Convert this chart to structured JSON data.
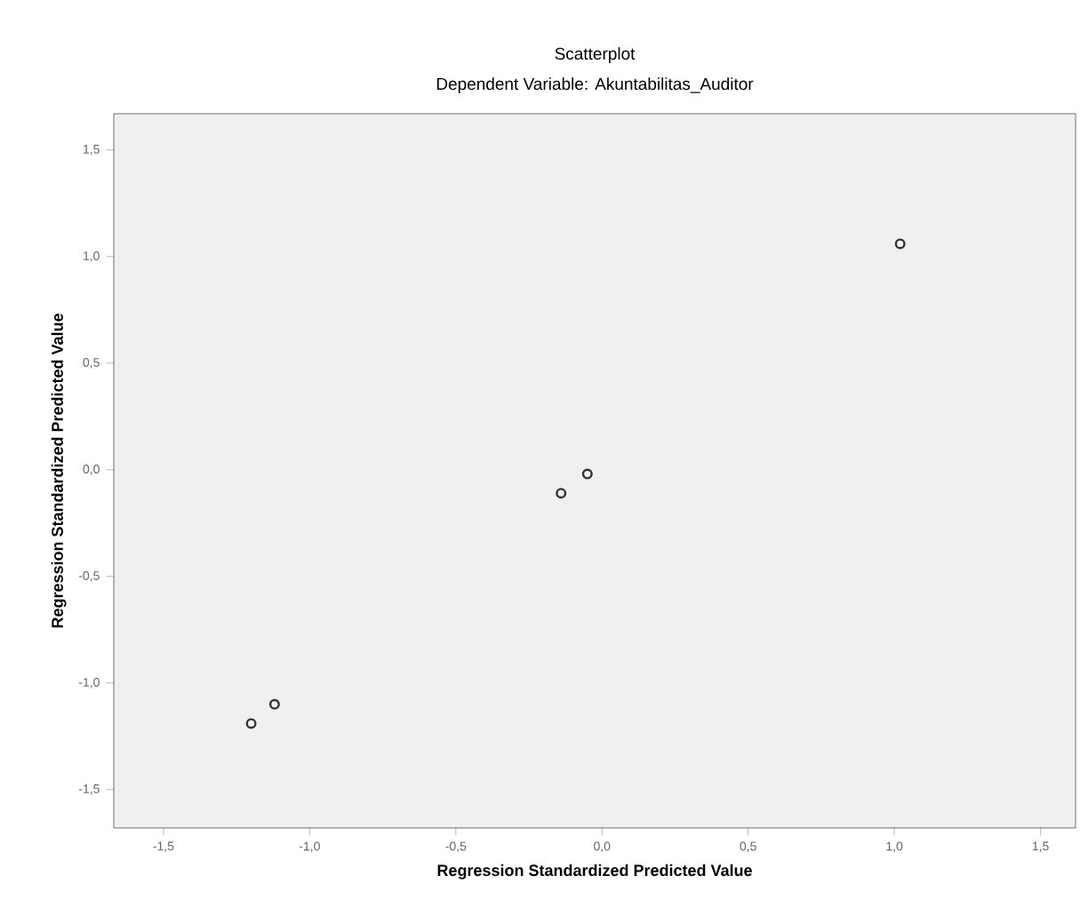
{
  "chart_data": {
    "type": "scatter",
    "title": "Scatterplot",
    "subtitle": "Dependent Variable: Akuntabilitas_Auditor",
    "xlabel": "Regression Standardized Predicted Value",
    "ylabel": "Regression Standardized Predicted Value",
    "x": [
      1.02,
      -0.05,
      -0.14,
      -1.12,
      -1.2
    ],
    "values": [
      1.06,
      -0.02,
      -0.11,
      -1.1,
      -1.19
    ],
    "color": "#333333",
    "marker": "circle",
    "xlim": [
      -1.67,
      1.62
    ],
    "ylim": [
      -1.68,
      1.67
    ],
    "xticks": [
      {
        "value": -1.5,
        "label": "-1,5"
      },
      {
        "value": -1.0,
        "label": "-1,0"
      },
      {
        "value": -0.5,
        "label": "-0,5"
      },
      {
        "value": 0.0,
        "label": "0,0"
      },
      {
        "value": 0.5,
        "label": "0,5"
      },
      {
        "value": 1.0,
        "label": "1,0"
      },
      {
        "value": 1.5,
        "label": "1,5"
      }
    ],
    "yticks": [
      {
        "value": -1.5,
        "label": "-1,5"
      },
      {
        "value": -1.0,
        "label": "-1,0"
      },
      {
        "value": -0.5,
        "label": "-0,5"
      },
      {
        "value": 0.0,
        "label": "0,0"
      },
      {
        "value": 0.5,
        "label": "0,5"
      },
      {
        "value": 1.0,
        "label": "1,0"
      },
      {
        "value": 1.5,
        "label": "1,5"
      }
    ],
    "grid": false
  }
}
